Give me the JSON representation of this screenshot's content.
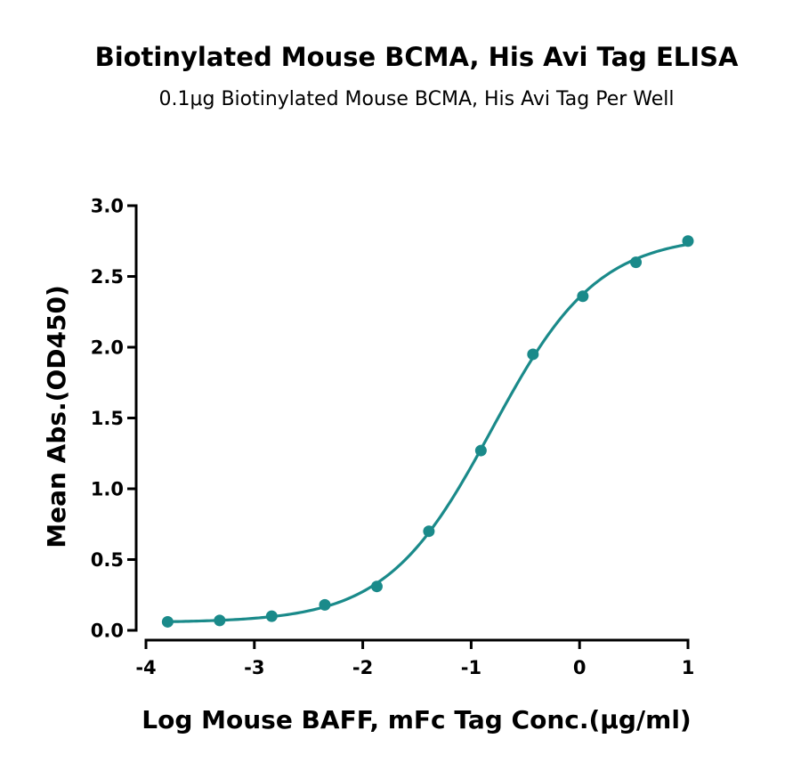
{
  "chart_data": {
    "type": "scatter",
    "title": "Biotinylated Mouse BCMA, His Avi Tag ELISA",
    "subtitle": "0.1μg Biotinylated Mouse BCMA, His Avi Tag Per Well",
    "xlabel": "Log Mouse BAFF, mFc Tag Conc.(μg/ml)",
    "ylabel": "Mean Abs.(OD450)",
    "xlim": [
      -4,
      1
    ],
    "ylim": [
      0,
      3
    ],
    "x_ticks": [
      -4,
      -3,
      -2,
      -1,
      0,
      1
    ],
    "y_ticks": [
      0,
      0.5,
      1,
      1.5,
      2,
      2.5,
      3
    ],
    "x_tick_labels": [
      "-4",
      "-3",
      "-2",
      "-1",
      "0",
      "1"
    ],
    "y_tick_labels": [
      "0.0",
      "0.5",
      "1.0",
      "1.5",
      "2.0",
      "2.5",
      "3.0"
    ],
    "grid": false,
    "color": "#1a8a8a",
    "series": [
      {
        "x": [
          -3.8,
          -3.32,
          -2.84,
          -2.35,
          -1.87,
          -1.39,
          -0.91,
          -0.43,
          0.03,
          0.52,
          1.0
        ],
        "y": [
          0.06,
          0.07,
          0.1,
          0.18,
          0.31,
          0.7,
          1.27,
          1.95,
          2.36,
          2.6,
          2.75
        ],
        "fit": "four-parameter-logistic"
      }
    ]
  }
}
